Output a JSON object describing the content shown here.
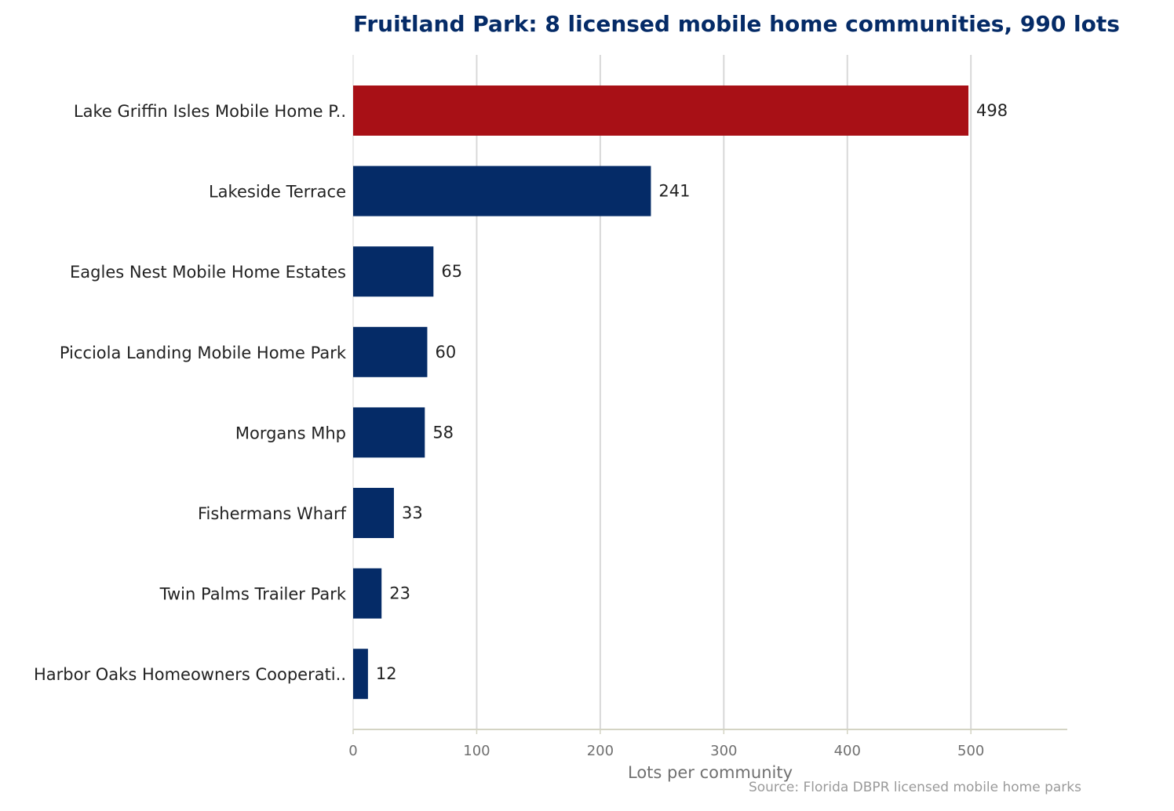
{
  "chart_data": {
    "type": "bar",
    "orientation": "horizontal",
    "title": "Fruitland Park: 8 licensed mobile home communities, 990 lots",
    "xlabel": "Lots per community",
    "ylabel": "",
    "categories": [
      "Lake Griffin Isles Mobile Home P..",
      "Lakeside Terrace",
      "Eagles Nest Mobile Home Estates",
      "Picciola Landing Mobile Home Park",
      "Morgans Mhp",
      "Fishermans Wharf",
      "Twin Palms Trailer Park",
      "Harbor Oaks Homeowners Cooperati.."
    ],
    "values": [
      498,
      241,
      65,
      60,
      58,
      33,
      23,
      12
    ],
    "value_labels": [
      "498",
      "241",
      "65",
      "60",
      "58",
      "33",
      "23",
      "12"
    ],
    "highlight_index": 0,
    "xlim": [
      0,
      578
    ],
    "xticks": [
      0,
      100,
      200,
      300,
      400,
      500
    ],
    "xtick_labels": [
      "0",
      "100",
      "200",
      "300",
      "400",
      "500"
    ],
    "grid": "vertical",
    "legend": "none",
    "source": "Source: Florida DBPR licensed mobile home parks",
    "colors": {
      "bar": "#052b67",
      "highlight": "#a81016",
      "title": "#052b67",
      "grid": "#d8d8d8",
      "axis": "#d4d4c4",
      "tick_text": "#707070",
      "label_text": "#222222",
      "source_text": "#9a9a9a"
    }
  }
}
